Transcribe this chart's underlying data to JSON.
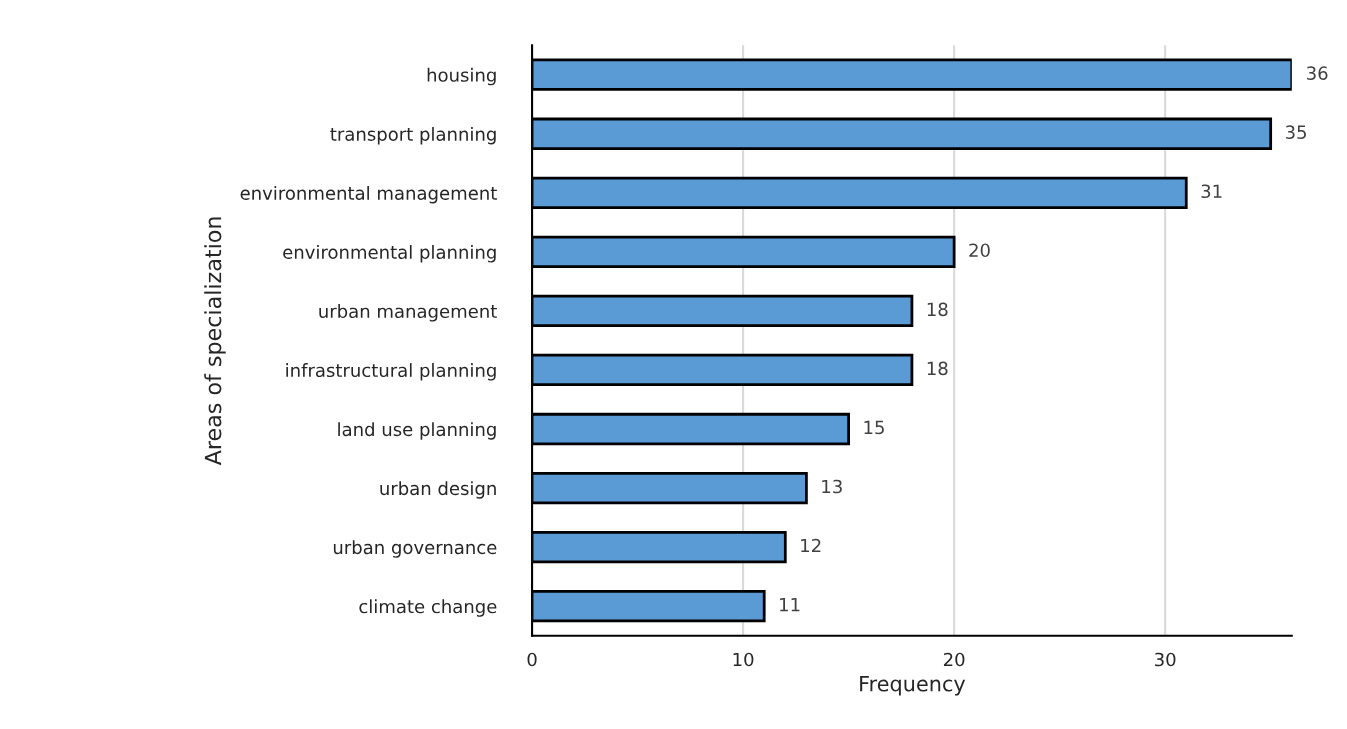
{
  "chart_data": {
    "type": "bar",
    "orientation": "horizontal",
    "xlabel": "Frequency",
    "ylabel": "Areas of specialization",
    "categories": [
      "housing",
      "transport planning",
      "environmental management",
      "environmental planning",
      "urban management",
      "infrastructural planning",
      "land use planning",
      "urban design",
      "urban governance",
      "climate change"
    ],
    "values": [
      36,
      35,
      31,
      20,
      18,
      18,
      15,
      13,
      12,
      11
    ],
    "color": "#5b9bd5",
    "xlim": [
      0,
      36
    ],
    "xticks": [
      0,
      10,
      20,
      30
    ],
    "grid": "x",
    "data_labels": true
  }
}
